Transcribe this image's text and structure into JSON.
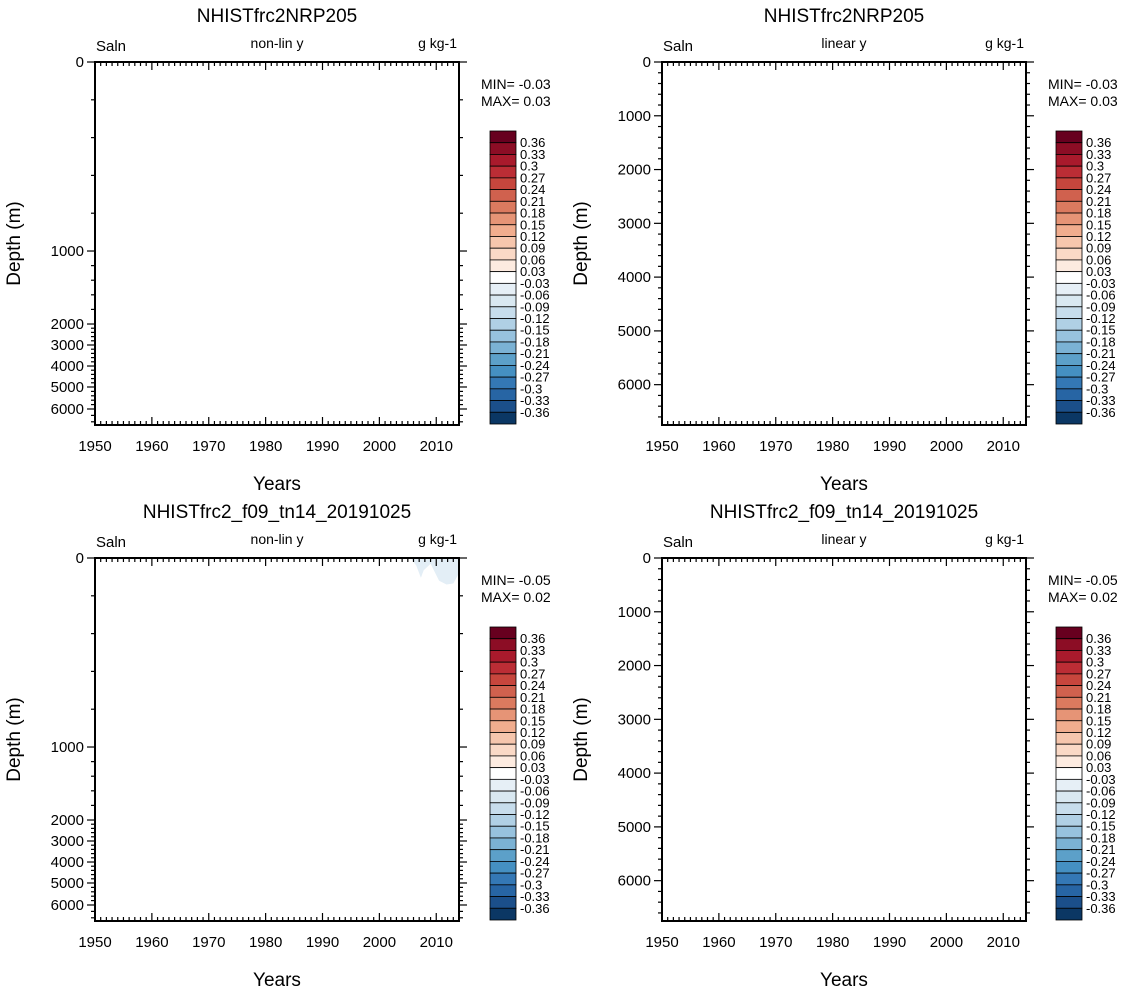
{
  "colorbar": {
    "labels": [
      "0.36",
      "0.33",
      "0.3",
      "0.27",
      "0.24",
      "0.21",
      "0.18",
      "0.15",
      "0.12",
      "0.09",
      "0.06",
      "0.03",
      "-0.03",
      "-0.06",
      "-0.09",
      "-0.12",
      "-0.15",
      "-0.18",
      "-0.21",
      "-0.24",
      "-0.27",
      "-0.3",
      "-0.33",
      "-0.36"
    ],
    "colors": [
      "#67001f",
      "#8c0d25",
      "#a91a2c",
      "#bb2d35",
      "#c7463d",
      "#d0614e",
      "#db7a5f",
      "#e69476",
      "#f1ad8e",
      "#f6c6ad",
      "#fad9c6",
      "#fdebe0",
      "#ffffff",
      "#e6eff6",
      "#d9e8f1",
      "#c7ddec",
      "#b0d0e5",
      "#97c2de",
      "#7bb2d4",
      "#5ca0c9",
      "#4590c2",
      "#3478b5",
      "#2765a4",
      "#1b4f8a",
      "#0b3764"
    ]
  },
  "chart_data": [
    {
      "type": "heatmap",
      "title": "NHISTfrc2NRP205",
      "left_label": "Saln",
      "center_label": "non-lin y",
      "right_label": "g kg-1",
      "xlabel": "Years",
      "ylabel": "Depth (m)",
      "xlim": [
        1950,
        2014
      ],
      "xticks": [
        "1950",
        "1960",
        "1970",
        "1980",
        "1990",
        "2000",
        "2010"
      ],
      "ylim": [
        0,
        6500
      ],
      "yscale": "non-linear",
      "yticks": [
        "0",
        "1000",
        "2000",
        "3000",
        "4000",
        "5000",
        "6000"
      ],
      "min_label": "MIN= -0.03",
      "max_label": "MAX=  0.03",
      "field": "near-zero everywhere"
    },
    {
      "type": "heatmap",
      "title": "NHISTfrc2NRP205",
      "left_label": "Saln",
      "center_label": "linear y",
      "right_label": "g kg-1",
      "xlabel": "Years",
      "ylabel": "Depth (m)",
      "xlim": [
        1950,
        2014
      ],
      "xticks": [
        "1950",
        "1960",
        "1970",
        "1980",
        "1990",
        "2000",
        "2010"
      ],
      "ylim": [
        0,
        6750
      ],
      "yscale": "linear",
      "yticks": [
        "0",
        "1000",
        "2000",
        "3000",
        "4000",
        "5000",
        "6000"
      ],
      "min_label": "MIN= -0.03",
      "max_label": "MAX=  0.03",
      "field": "near-zero everywhere"
    },
    {
      "type": "heatmap",
      "title": "NHISTfrc2_f09_tn14_20191025",
      "left_label": "Saln",
      "center_label": "non-lin y",
      "right_label": "g kg-1",
      "xlabel": "Years",
      "ylabel": "Depth (m)",
      "xlim": [
        1950,
        2014
      ],
      "xticks": [
        "1950",
        "1960",
        "1970",
        "1980",
        "1990",
        "2000",
        "2010"
      ],
      "ylim": [
        0,
        6500
      ],
      "yscale": "non-linear",
      "yticks": [
        "0",
        "1000",
        "2000",
        "3000",
        "4000",
        "5000",
        "6000"
      ],
      "min_label": "MIN= -0.05",
      "max_label": "MAX=  0.02",
      "field": "near-zero; faint negative (-0.03 to -0.06) anomaly in upper ~100 m after 2006"
    },
    {
      "type": "heatmap",
      "title": "NHISTfrc2_f09_tn14_20191025",
      "left_label": "Saln",
      "center_label": "linear y",
      "right_label": "g kg-1",
      "xlabel": "Years",
      "ylabel": "Depth (m)",
      "xlim": [
        1950,
        2014
      ],
      "xticks": [
        "1950",
        "1960",
        "1970",
        "1980",
        "1990",
        "2000",
        "2010"
      ],
      "ylim": [
        0,
        6750
      ],
      "yscale": "linear",
      "yticks": [
        "0",
        "1000",
        "2000",
        "3000",
        "4000",
        "5000",
        "6000"
      ],
      "min_label": "MIN= -0.05",
      "max_label": "MAX=  0.02",
      "field": "near-zero everywhere"
    }
  ]
}
